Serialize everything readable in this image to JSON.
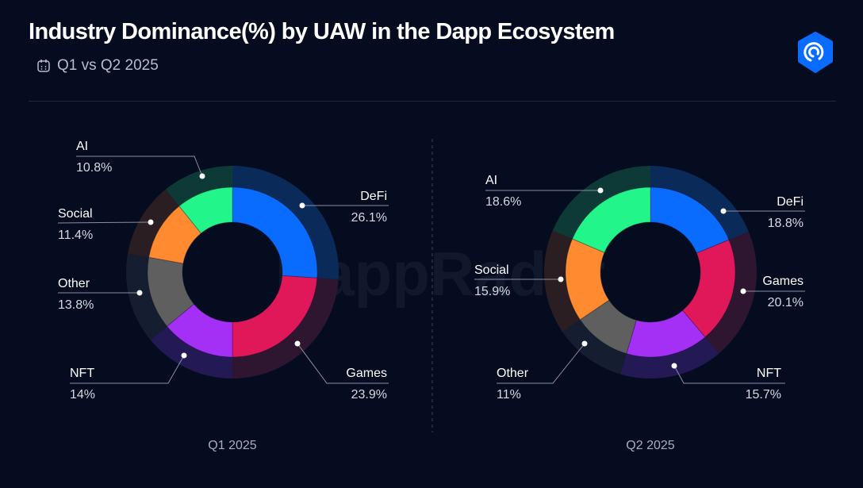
{
  "header": {
    "title": "Industry Dominance(%) by UAW in the Dapp Ecosystem",
    "subtitle": "Q1 vs Q2 2025",
    "subtitle_icon": "calendar-icon",
    "logo": "dappradar-logo",
    "watermark": "DappRadar"
  },
  "colors": {
    "background": "#050c20",
    "DeFi": "#0a6cff",
    "Games": "#e0185a",
    "NFT": "#a530f5",
    "Other": "#5f5f5f",
    "Social": "#ff8a30",
    "AI": "#22f58a"
  },
  "chart_data": [
    {
      "type": "pie",
      "variant": "donut",
      "caption": "Q1 2025",
      "categories": [
        "DeFi",
        "Games",
        "NFT",
        "Other",
        "Social",
        "AI"
      ],
      "values": [
        26.1,
        23.9,
        14,
        13.8,
        11.4,
        10.8
      ],
      "value_labels": [
        "26.1%",
        "23.9%",
        "14%",
        "13.8%",
        "11.4%",
        "10.8%"
      ]
    },
    {
      "type": "pie",
      "variant": "donut",
      "caption": "Q2 2025",
      "categories": [
        "DeFi",
        "Games",
        "NFT",
        "Other",
        "Social",
        "AI"
      ],
      "values": [
        18.8,
        20.1,
        15.7,
        11,
        15.9,
        18.6
      ],
      "value_labels": [
        "18.8%",
        "20.1%",
        "15.7%",
        "11%",
        "15.9%",
        "18.6%"
      ]
    }
  ]
}
